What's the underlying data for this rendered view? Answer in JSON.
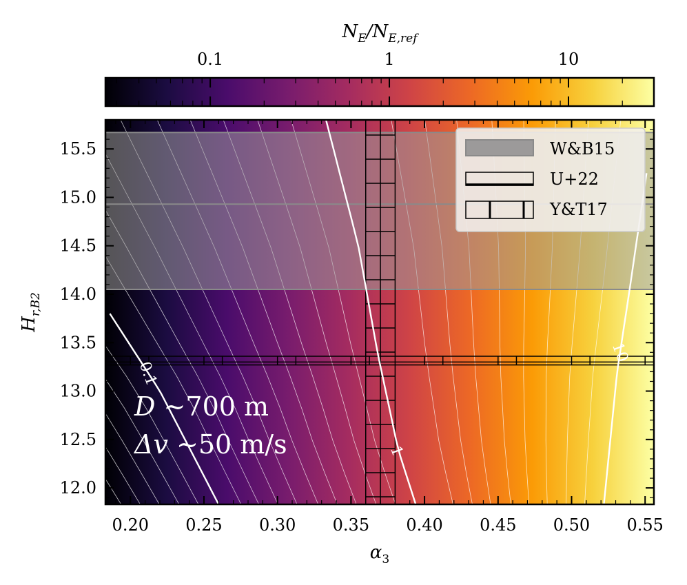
{
  "chart_data": {
    "type": "heatmap",
    "colorbar": {
      "label_main": "N",
      "label_sub1": "E",
      "label_slash": "/N",
      "label_sub2": "E,ref",
      "scale": "log",
      "range": [
        0.026,
        30
      ],
      "ticks": [
        {
          "value": 0.1,
          "label": "0.1"
        },
        {
          "value": 1,
          "label": "1"
        },
        {
          "value": 10,
          "label": "10"
        }
      ],
      "colormap": "inferno"
    },
    "xlabel_main": "α",
    "xlabel_sub": "3",
    "ylabel_main": "H",
    "ylabel_sub": "r,B2",
    "xlim": [
      0.183,
      0.556
    ],
    "ylim": [
      11.83,
      15.8
    ],
    "xticks": [
      {
        "value": 0.2,
        "label": "0.20"
      },
      {
        "value": 0.25,
        "label": "0.25"
      },
      {
        "value": 0.3,
        "label": "0.30"
      },
      {
        "value": 0.35,
        "label": "0.35"
      },
      {
        "value": 0.4,
        "label": "0.40"
      },
      {
        "value": 0.45,
        "label": "0.45"
      },
      {
        "value": 0.5,
        "label": "0.50"
      },
      {
        "value": 0.55,
        "label": "0.55"
      }
    ],
    "yticks": [
      {
        "value": 12.0,
        "label": "12.0"
      },
      {
        "value": 12.5,
        "label": "12.5"
      },
      {
        "value": 13.0,
        "label": "13.0"
      },
      {
        "value": 13.5,
        "label": "13.5"
      },
      {
        "value": 14.0,
        "label": "14.0"
      },
      {
        "value": 14.5,
        "label": "14.5"
      },
      {
        "value": 15.0,
        "label": "15.0"
      },
      {
        "value": 15.5,
        "label": "15.5"
      }
    ],
    "labeled_contours": [
      {
        "level": 0.1,
        "label": "0.1",
        "points": [
          [
            0.186,
            13.8
          ],
          [
            0.22,
            13.0
          ],
          [
            0.26,
            11.83
          ]
        ],
        "label_at": [
          0.212,
          13.18
        ]
      },
      {
        "level": 1,
        "label": "1",
        "points": [
          [
            0.333,
            15.8
          ],
          [
            0.355,
            14.5
          ],
          [
            0.368,
            13.4
          ],
          [
            0.382,
            12.4
          ],
          [
            0.394,
            11.83
          ]
        ],
        "label_at": [
          0.381,
          12.38
        ]
      },
      {
        "level": 10,
        "label": "10",
        "points": [
          [
            0.551,
            15.25
          ],
          [
            0.539,
            14.0
          ],
          [
            0.531,
            13.2
          ],
          [
            0.522,
            11.83
          ]
        ],
        "label_at": [
          0.533,
          13.4
        ]
      }
    ],
    "thin_contours": {
      "levels": [
        0.016,
        0.02,
        0.025,
        0.032,
        0.04,
        0.05,
        0.063,
        0.079,
        0.13,
        0.16,
        0.2,
        0.25,
        0.32,
        0.4,
        0.5,
        0.63,
        0.79,
        1.58,
        2.0,
        2.5,
        3.2,
        4.0,
        5.0,
        6.3,
        7.9
      ]
    },
    "bands": [
      {
        "name": "W&B15",
        "y_range": [
          14.05,
          15.67
        ],
        "y_center": 14.93,
        "style": "shaded"
      },
      {
        "name": "U+22",
        "y_range": [
          13.27,
          13.36
        ],
        "y_center": 13.3,
        "style": "errorbar-horizontal"
      },
      {
        "name": "Y&T17",
        "x_range": [
          0.36,
          0.38
        ],
        "x_center": 0.37,
        "style": "errorbar-vertical"
      }
    ],
    "legend": {
      "position": "top-right",
      "entries": [
        {
          "label": "W&B15",
          "style": "shaded"
        },
        {
          "label": "U+22",
          "style": "errorbar-horizontal"
        },
        {
          "label": "Y&T17",
          "style": "errorbar-vertical"
        }
      ]
    },
    "annotations": [
      {
        "lines": [
          {
            "sym": "D",
            "rest": " ∼700 m"
          },
          {
            "sym": "Δv",
            "rest": " ∼50 m/s"
          }
        ],
        "position": "lower-left"
      }
    ]
  }
}
